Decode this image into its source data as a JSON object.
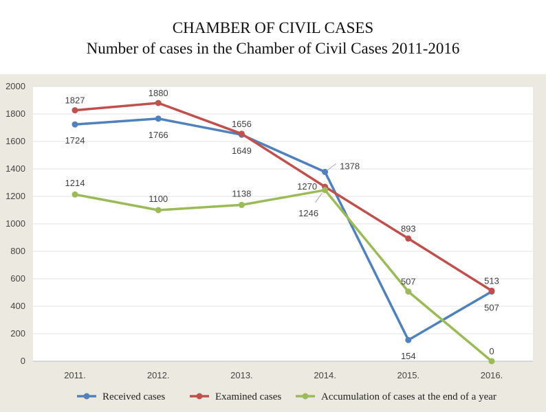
{
  "title": "CHAMBER OF CIVIL CASES",
  "subtitle": "Number of cases in the Chamber of Civil Cases 2011-2016",
  "chart_data": {
    "type": "line",
    "categories": [
      "2011.",
      "2012.",
      "2013.",
      "2014.",
      "2015.",
      "2016."
    ],
    "ylim": [
      0,
      2000
    ],
    "yticks": [
      0,
      200,
      400,
      600,
      800,
      1000,
      1200,
      1400,
      1600,
      1800,
      2000
    ],
    "grid": true,
    "legend_position": "bottom",
    "series": [
      {
        "name": "Received cases",
        "color": "#4f81bd",
        "values": [
          1724,
          1766,
          1649,
          1378,
          154,
          507
        ]
      },
      {
        "name": "Examined cases",
        "color": "#c0504d",
        "values": [
          1827,
          1880,
          1656,
          1270,
          893,
          513
        ]
      },
      {
        "name": "Accumulation of cases at the end of a year",
        "color": "#9bbb59",
        "values": [
          1214,
          1100,
          1138,
          1246,
          507,
          0
        ]
      }
    ]
  }
}
